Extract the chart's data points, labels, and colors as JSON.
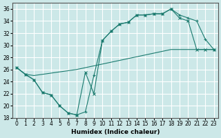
{
  "xlabel": "Humidex (Indice chaleur)",
  "bg_color": "#cce8e8",
  "line_color": "#1a7a6e",
  "grid_color": "#ffffff",
  "xlim": [
    -0.5,
    23.5
  ],
  "ylim": [
    18,
    37
  ],
  "yticks": [
    18,
    20,
    22,
    24,
    26,
    28,
    30,
    32,
    34,
    36
  ],
  "xticks": [
    0,
    1,
    2,
    3,
    4,
    5,
    6,
    7,
    8,
    9,
    10,
    11,
    12,
    13,
    14,
    15,
    16,
    17,
    18,
    19,
    20,
    21,
    22,
    23
  ],
  "line1_x": [
    0,
    1,
    2,
    3,
    4,
    5,
    6,
    7,
    8,
    9,
    10,
    11,
    12,
    13,
    14,
    15,
    16,
    17,
    18,
    19,
    20,
    21,
    22,
    23
  ],
  "line1_y": [
    26.3,
    25.2,
    25.0,
    25.2,
    25.4,
    25.6,
    25.8,
    26.0,
    26.3,
    26.6,
    26.9,
    27.2,
    27.5,
    27.8,
    28.1,
    28.4,
    28.7,
    29.0,
    29.3,
    29.3,
    29.3,
    29.3,
    29.3,
    29.3
  ],
  "line2_x": [
    0,
    1,
    2,
    3,
    4,
    5,
    6,
    7,
    8,
    9,
    10,
    11,
    12,
    13,
    14,
    15,
    16,
    17,
    18,
    19,
    20,
    21,
    22,
    23
  ],
  "line2_y": [
    26.3,
    25.2,
    24.3,
    22.2,
    21.8,
    20.0,
    18.8,
    18.5,
    19.0,
    25.0,
    30.8,
    32.3,
    33.5,
    33.8,
    35.0,
    35.0,
    35.2,
    35.2,
    36.0,
    35.0,
    34.5,
    34.0,
    31.0,
    29.3
  ],
  "line3_x": [
    0,
    1,
    2,
    3,
    4,
    5,
    6,
    7,
    8,
    9,
    10,
    11,
    12,
    13,
    14,
    15,
    16,
    17,
    18,
    19,
    20,
    21,
    22,
    23
  ],
  "line3_y": [
    26.3,
    25.2,
    24.3,
    22.2,
    21.8,
    20.0,
    18.8,
    18.5,
    25.5,
    22.0,
    30.8,
    32.3,
    33.5,
    33.8,
    35.0,
    35.0,
    35.2,
    35.2,
    36.0,
    34.5,
    34.0,
    29.3,
    29.3,
    29.3
  ]
}
